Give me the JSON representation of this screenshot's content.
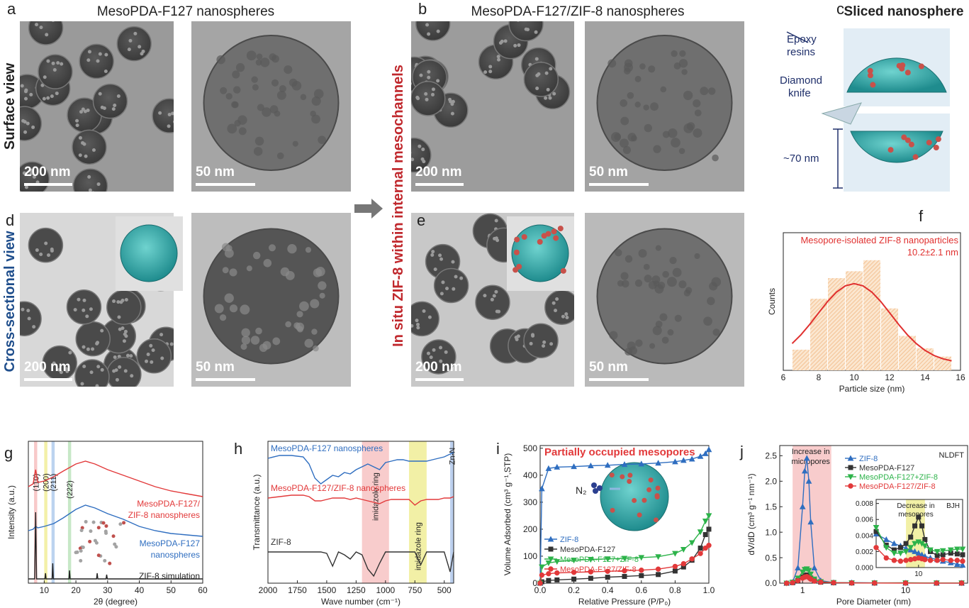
{
  "figure": {
    "panel_labels": [
      "a",
      "b",
      "c",
      "d",
      "e",
      "f",
      "g",
      "h",
      "i",
      "j"
    ],
    "titles": [
      "MesoPDA-F127 nanospheres",
      "MesoPDA-F127/ZIF-8 nanospheres",
      "Sliced nanosphere"
    ],
    "row_labels": [
      "Surface view",
      "Cross-sectional view"
    ],
    "middle_label": "In situ ZIF-8 within internal mesochannels",
    "scale_bars": [
      "200 nm",
      "50 nm",
      "200 nm",
      "50 nm",
      "200 nm",
      "50 nm",
      "200 nm",
      "50 nm"
    ],
    "slice": {
      "epoxy": [
        "Epoxy",
        "resins"
      ],
      "knife": [
        "Diamond",
        "knife"
      ],
      "thickness": "~70 nm"
    }
  },
  "chart_data": [
    {
      "type": "histogram",
      "xlabel": "Particle size (nm)",
      "ylabel": "Counts",
      "annotations": [
        "Mesopore-isolated ZIF-8 nanoparticles",
        "10.2±2.1 nm"
      ],
      "bins": [
        6.5,
        7.5,
        8.5,
        9.5,
        10.5,
        11.5,
        12.5,
        13.5,
        14.5,
        15.5
      ],
      "counts": [
        15,
        52,
        67,
        72,
        80,
        45,
        25,
        16,
        10
      ],
      "color": "#f6cfa6",
      "fit": {
        "color": "#e0302f",
        "x": [
          6.5,
          7,
          7.5,
          8,
          8.5,
          9,
          9.5,
          10,
          10.5,
          11,
          11.5,
          12,
          12.5,
          13,
          13.5,
          14,
          14.5,
          15,
          15.5
        ],
        "values": [
          19.5,
          25.9,
          33.5,
          41.8,
          50,
          56.8,
          61.4,
          63,
          61.4,
          56.8,
          50,
          41.8,
          33.5,
          25.9,
          19.5,
          14.5,
          10.8,
          8.4,
          6.9
        ]
      },
      "xlim": [
        6,
        16
      ],
      "ylim": [
        0,
        100
      ],
      "xticks": [
        6,
        8,
        10,
        12,
        14,
        16
      ]
    },
    {
      "type": "line",
      "xlabel": "2θ (degree)",
      "ylabel": "Intensity (a.u.)",
      "xlim": [
        5,
        60
      ],
      "ylim": [
        0,
        100
      ],
      "xticks": [
        10,
        20,
        30,
        40,
        50,
        60
      ],
      "bands": [
        {
          "x": [
            6.8,
            7.8
          ],
          "color": "#f8c9c9"
        },
        {
          "x": [
            10,
            11
          ],
          "color": "#f3f0a8"
        },
        {
          "x": [
            12.3,
            13.3
          ],
          "color": "#bcd3ef"
        },
        {
          "x": [
            17.5,
            18.5
          ],
          "color": "#c7e8c7"
        }
      ],
      "band_labels": [
        "(110)",
        "(200)",
        "(211)",
        "(222)"
      ],
      "series": [
        {
          "labels": [
            "MesoPDA-F127/",
            "ZIF-8 nanospheres"
          ],
          "color": "#e2393a",
          "x": [
            5,
            6.5,
            7.3,
            8,
            10,
            13,
            16,
            20,
            23,
            26,
            30,
            35,
            40,
            45,
            50,
            55,
            60
          ],
          "values": [
            68,
            70,
            80,
            71,
            72,
            75,
            79,
            84,
            86,
            84,
            80,
            76,
            72,
            68,
            65,
            63,
            61
          ]
        },
        {
          "labels": [
            "MesoPDA-F127",
            "nanospheres"
          ],
          "color": "#2f6ec0",
          "x": [
            5,
            6.5,
            7.3,
            8,
            10,
            13,
            16,
            20,
            23,
            26,
            30,
            35,
            40,
            45,
            50,
            55,
            60
          ],
          "values": [
            37,
            38,
            40,
            39,
            40,
            42,
            46,
            52,
            55,
            53,
            49,
            45,
            40,
            37,
            35,
            34,
            33
          ]
        },
        {
          "labels": [
            "ZIF-8 simulation"
          ],
          "color": "#222222",
          "x": [
            5,
            7,
            7.3,
            7.6,
            10.2,
            10.4,
            10.6,
            12.5,
            12.7,
            12.9,
            17.8,
            18,
            18.2,
            22,
            26.5,
            26.7,
            26.9,
            29.5,
            29.7,
            29.9,
            35,
            60
          ],
          "values": [
            3,
            3,
            50,
            3,
            3,
            7,
            3,
            3,
            14,
            3,
            3,
            9,
            3,
            3,
            3,
            7,
            3,
            3,
            6,
            3,
            3,
            3
          ]
        }
      ]
    },
    {
      "type": "line",
      "xlabel": "Wave number (cm⁻¹)",
      "ylabel": "Transmittance (a.u.)",
      "xlim": [
        2000,
        420
      ],
      "ylim": [
        0,
        100
      ],
      "xticks": [
        2000,
        1750,
        1500,
        1250,
        1000,
        750,
        500
      ],
      "bands": [
        {
          "x": [
            1200,
            970
          ],
          "color": "#f8cccc"
        },
        {
          "x": [
            800,
            650
          ],
          "color": "#f2f0a6"
        },
        {
          "x": [
            450,
            420
          ],
          "color": "#bcd0ee"
        }
      ],
      "band_labels": [
        "imidazole ring",
        "imidazole ring",
        "Zn-N"
      ],
      "x": [
        2000,
        1900,
        1800,
        1700,
        1650,
        1600,
        1550,
        1500,
        1450,
        1400,
        1350,
        1300,
        1250,
        1200,
        1150,
        1100,
        1050,
        1000,
        950,
        900,
        850,
        800,
        750,
        700,
        650,
        600,
        550,
        500,
        450,
        420
      ],
      "series": [
        {
          "name": "MesoPDA-F127 nanospheres",
          "color": "#2f6ec0",
          "values": [
            88,
            90,
            90,
            89,
            84,
            74,
            70,
            73,
            76,
            75,
            78,
            77,
            80,
            82,
            84,
            82,
            80,
            85,
            86,
            87,
            87,
            86,
            86,
            86,
            86,
            87,
            88,
            89,
            91,
            92
          ]
        },
        {
          "name": "MesoPDA-F127/ZIF-8 nanospheres",
          "color": "#e2393a",
          "values": [
            60,
            61,
            62,
            62,
            61,
            58,
            58,
            59,
            60,
            60,
            60,
            59,
            60,
            59,
            58,
            57,
            56,
            58,
            59,
            59,
            59,
            59,
            55,
            58,
            59,
            59,
            59,
            60,
            60,
            61
          ]
        },
        {
          "name": "ZIF-8",
          "color": "#333333",
          "values": [
            22,
            22,
            22,
            22,
            22,
            22,
            22,
            21,
            12,
            22,
            20,
            17,
            22,
            20,
            10,
            5,
            14,
            22,
            22,
            22,
            22,
            22,
            22,
            13,
            22,
            22,
            22,
            22,
            8,
            22
          ]
        }
      ]
    },
    {
      "type": "line",
      "title": "Partially occupied mesopores",
      "annotation": "N₂",
      "xlabel": "Relative Pressure (P/P₀)",
      "ylabel": "Volume Adsorbed (cm³ g⁻¹,STP)",
      "xlim": [
        0,
        1
      ],
      "ylim": [
        0,
        510
      ],
      "xticks": [
        {
          "value": 0,
          "label": "0.0"
        },
        0.2,
        0.4,
        0.6,
        0.8,
        {
          "value": 1,
          "label": "1.0"
        }
      ],
      "yticks": [
        0,
        100,
        200,
        300,
        400,
        500
      ],
      "x": [
        0,
        0.01,
        0.05,
        0.1,
        0.2,
        0.3,
        0.4,
        0.5,
        0.6,
        0.7,
        0.8,
        0.85,
        0.9,
        0.95,
        0.98,
        1
      ],
      "series": [
        {
          "name": "ZIF-8",
          "color": "#2f6ec0",
          "marker": "up",
          "values": [
            0,
            350,
            425,
            430,
            432,
            435,
            437,
            440,
            442,
            445,
            450,
            455,
            460,
            470,
            480,
            495
          ]
        },
        {
          "name": "MesoPDA-F127",
          "color": "#333333",
          "marker": "square",
          "values": [
            0,
            5,
            10,
            12,
            15,
            18,
            22,
            25,
            28,
            32,
            45,
            60,
            85,
            130,
            180,
            200
          ]
        },
        {
          "name": "MesoPDA-F127+ZIF-8",
          "color": "#2db34a",
          "marker": "down",
          "values": [
            0,
            60,
            75,
            80,
            85,
            88,
            90,
            92,
            95,
            98,
            110,
            125,
            150,
            190,
            230,
            250
          ]
        },
        {
          "name": "MesoPDA-F127/ZIF-8",
          "color": "#e2393a",
          "marker": "circle",
          "values": [
            0,
            30,
            35,
            38,
            40,
            42,
            44,
            46,
            48,
            52,
            62,
            72,
            90,
            110,
            130,
            140
          ]
        }
      ]
    },
    {
      "type": "line",
      "xlog": true,
      "note": "NLDFT",
      "band_labels": [
        "Increase in",
        "micropores"
      ],
      "xlabel": "Pore Diameter (nm)",
      "ylabel": "dV/dD (cm³ g⁻¹ nm⁻¹)",
      "xlim": [
        0.6,
        40
      ],
      "ylim": [
        0,
        2.7
      ],
      "xticks": [
        1,
        10
      ],
      "yticks": [
        {
          "value": 0,
          "label": "0.0"
        },
        0.5,
        {
          "value": 1,
          "label": "1.0"
        },
        1.5,
        {
          "value": 2,
          "label": "2.0"
        },
        2.5
      ],
      "bands": [
        {
          "x": [
            0.8,
            1.9
          ],
          "color": "#f8cccc"
        }
      ],
      "x": [
        0.7,
        0.8,
        0.9,
        1,
        1.05,
        1.1,
        1.15,
        1.2,
        1.3,
        1.5,
        2,
        3,
        5,
        10,
        20,
        35
      ],
      "series": [
        {
          "name": "ZIF-8",
          "color": "#2f6ec0",
          "marker": "up",
          "values": [
            0,
            0.02,
            0.3,
            1.5,
            2.2,
            2.45,
            2,
            1.2,
            0.3,
            0.05,
            0.01,
            0.01,
            0.005,
            0.003,
            0.002,
            0.002
          ]
        },
        {
          "name": "MesoPDA-F127",
          "color": "#333333",
          "marker": "square",
          "values": [
            0,
            0.01,
            0.05,
            0.12,
            0.15,
            0.16,
            0.14,
            0.1,
            0.05,
            0.02,
            0.01,
            0.005,
            0.004,
            0.005,
            0.003,
            0.003
          ]
        },
        {
          "name": "MesoPDA-F127+ZIF-8",
          "color": "#2db34a",
          "marker": "down",
          "values": [
            0,
            0.02,
            0.1,
            0.22,
            0.27,
            0.28,
            0.25,
            0.18,
            0.08,
            0.03,
            0.01,
            0.006,
            0.004,
            0.005,
            0.004,
            0.004
          ]
        },
        {
          "name": "MesoPDA-F127/ZIF-8",
          "color": "#e2393a",
          "marker": "circle",
          "values": [
            0,
            0.01,
            0.05,
            0.1,
            0.12,
            0.13,
            0.11,
            0.08,
            0.04,
            0.02,
            0.01,
            0.004,
            0.003,
            0.002,
            0.002,
            0.002
          ]
        }
      ]
    },
    {
      "type": "line",
      "xlog": true,
      "note": "BJH",
      "band_labels": [
        "Decrease in",
        "mesopores"
      ],
      "xlim": [
        3,
        35
      ],
      "ylim": [
        0,
        0.0085
      ],
      "xticks": [
        10
      ],
      "yticks": [
        {
          "value": 0,
          "label": "0.000"
        },
        {
          "value": 0.002,
          "label": "0.002"
        },
        {
          "value": 0.004,
          "label": "0.004"
        },
        {
          "value": 0.006,
          "label": "0.006"
        },
        {
          "value": 0.008,
          "label": "0.008"
        }
      ],
      "bands": [
        {
          "x": [
            7,
            12
          ],
          "color": "#f2f0a6"
        }
      ],
      "x": [
        3,
        4,
        5,
        6,
        7,
        8,
        9,
        10,
        11,
        12,
        14,
        17,
        20,
        25,
        30,
        35
      ],
      "series": [
        {
          "color": "#2f6ec0",
          "marker": "up",
          "values": [
            0.0042,
            0.0035,
            0.003,
            0.0027,
            0.0024,
            0.0022,
            0.002,
            0.0018,
            0.0016,
            0.0014,
            0.0012,
            0.001,
            0.0008,
            0.0006,
            0.0004,
            0.0003
          ]
        },
        {
          "color": "#333333",
          "marker": "square",
          "values": [
            0.0045,
            0.0028,
            0.0022,
            0.0025,
            0.003,
            0.0038,
            0.0052,
            0.0063,
            0.0052,
            0.0035,
            0.002,
            0.0015,
            0.0016,
            0.0018,
            0.0017,
            0.0016
          ]
        },
        {
          "color": "#2db34a",
          "marker": "down",
          "values": [
            0.005,
            0.0025,
            0.0018,
            0.0018,
            0.002,
            0.0025,
            0.003,
            0.0032,
            0.003,
            0.0027,
            0.0022,
            0.002,
            0.0021,
            0.0022,
            0.0023,
            0.0023
          ]
        },
        {
          "color": "#e2393a",
          "marker": "circle",
          "values": [
            0.0025,
            0.0012,
            0.0009,
            0.0008,
            0.0009,
            0.001,
            0.0011,
            0.0012,
            0.0011,
            0.001,
            0.0009,
            0.0009,
            0.001,
            0.0009,
            0.0009,
            0.0008
          ]
        }
      ]
    }
  ]
}
